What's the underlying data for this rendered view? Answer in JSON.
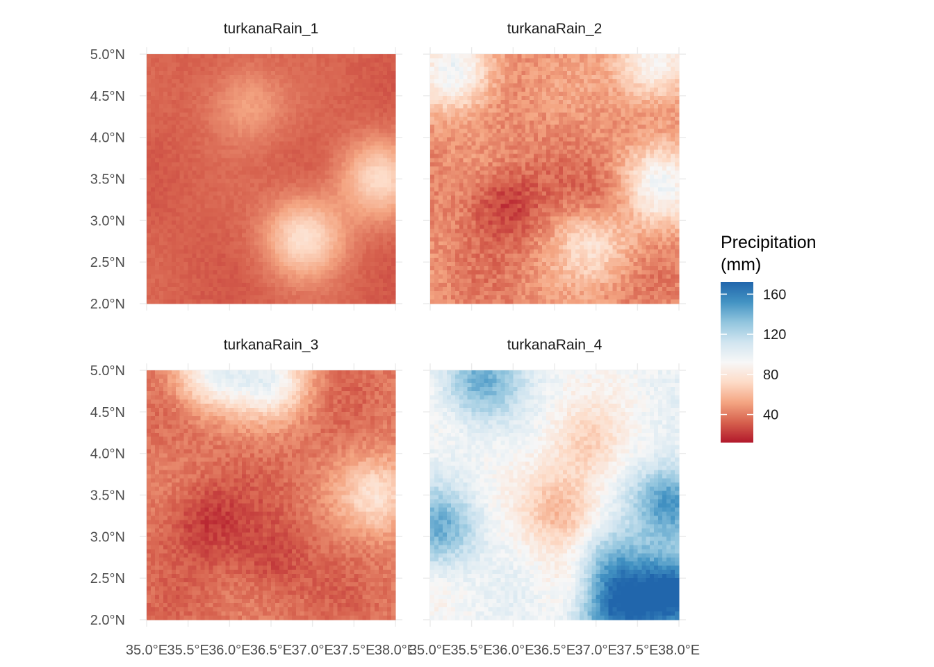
{
  "chart_data": {
    "type": "heatmap",
    "kind": "raster-map-facets",
    "facets": [
      {
        "name": "turkanaRain_1",
        "base_level": 32,
        "variation": 10,
        "features": [
          {
            "lon": 36.9,
            "lat": 2.8,
            "value": 75
          },
          {
            "lon": 37.8,
            "lat": 3.5,
            "value": 70
          },
          {
            "lon": 36.2,
            "lat": 4.4,
            "value": 52
          }
        ]
      },
      {
        "name": "turkanaRain_2",
        "base_level": 45,
        "variation": 28,
        "features": [
          {
            "lon": 35.9,
            "lat": 3.2,
            "value": 20
          },
          {
            "lon": 37.1,
            "lat": 3.1,
            "value": 22
          },
          {
            "lon": 35.3,
            "lat": 4.8,
            "value": 100
          },
          {
            "lon": 37.7,
            "lat": 4.9,
            "value": 95
          },
          {
            "lon": 37.0,
            "lat": 2.8,
            "value": 85
          },
          {
            "lon": 37.8,
            "lat": 3.4,
            "value": 92
          }
        ]
      },
      {
        "name": "turkanaRain_3",
        "base_level": 38,
        "variation": 22,
        "features": [
          {
            "lon": 35.7,
            "lat": 3.2,
            "value": 20
          },
          {
            "lon": 36.5,
            "lat": 2.7,
            "value": 24
          },
          {
            "lon": 35.8,
            "lat": 5.0,
            "value": 95
          },
          {
            "lon": 36.5,
            "lat": 4.9,
            "value": 90
          },
          {
            "lon": 37.8,
            "lat": 3.5,
            "value": 75
          }
        ]
      },
      {
        "name": "turkanaRain_4",
        "base_level": 95,
        "variation": 25,
        "features": [
          {
            "lon": 36.9,
            "lat": 4.1,
            "value": 70
          },
          {
            "lon": 36.6,
            "lat": 3.3,
            "value": 58
          },
          {
            "lon": 36.9,
            "lat": 2.5,
            "value": 50
          },
          {
            "lon": 35.6,
            "lat": 4.9,
            "value": 140
          },
          {
            "lon": 37.9,
            "lat": 3.4,
            "value": 155
          },
          {
            "lon": 37.9,
            "lat": 2.3,
            "value": 170
          },
          {
            "lon": 37.1,
            "lat": 2.6,
            "value": 165
          },
          {
            "lon": 37.2,
            "lat": 2.1,
            "value": 160
          },
          {
            "lon": 35.1,
            "lat": 3.1,
            "value": 140
          }
        ]
      }
    ],
    "x_ticks": [
      "35.0°E",
      "35.5°E",
      "36.0°E",
      "36.5°E",
      "37.0°E",
      "37.5°E",
      "38.0°E"
    ],
    "x_values": [
      35.0,
      35.5,
      36.0,
      36.5,
      37.0,
      37.5,
      38.0
    ],
    "y_ticks": [
      "5.0°N",
      "4.5°N",
      "4.0°N",
      "3.5°N",
      "3.0°N",
      "2.5°N",
      "2.0°N"
    ],
    "y_values": [
      5.0,
      4.5,
      4.0,
      3.5,
      3.0,
      2.5,
      2.0
    ],
    "xlim": [
      35.0,
      38.0
    ],
    "ylim": [
      2.0,
      5.0
    ],
    "legend": {
      "title_line1": "Precipitation",
      "title_line2": "(mm)",
      "range": [
        12,
        172
      ],
      "ticks": [
        {
          "value": 160,
          "label": "160"
        },
        {
          "value": 120,
          "label": "120"
        },
        {
          "value": 80,
          "label": "80"
        },
        {
          "value": 40,
          "label": "40"
        }
      ],
      "palette": "RdBu",
      "colors": [
        "#b2182b",
        "#d6604d",
        "#f4a582",
        "#fddbc7",
        "#f7f7f7",
        "#d1e5f0",
        "#92c5de",
        "#4393c3",
        "#2166ac"
      ]
    },
    "grid": true,
    "legend_position": "right"
  }
}
